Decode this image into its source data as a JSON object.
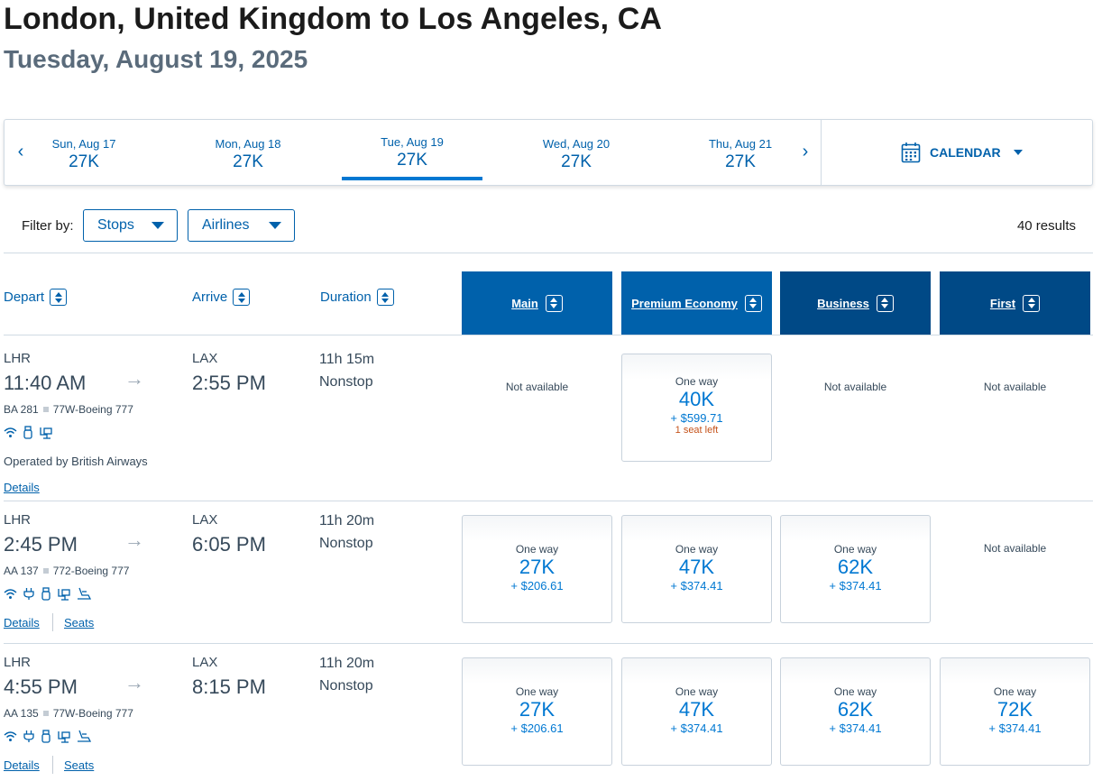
{
  "header": {
    "title": "London, United Kingdom to Los Angeles, CA",
    "subtitle": "Tuesday, August 19, 2025"
  },
  "datebar": {
    "prev_icon": "chevron-left-icon",
    "next_icon": "chevron-right-icon",
    "dates": [
      {
        "label": "Sun, Aug 17",
        "price": "27K"
      },
      {
        "label": "Mon, Aug 18",
        "price": "27K"
      },
      {
        "label": "Tue, Aug 19",
        "price": "27K",
        "selected": true
      },
      {
        "label": "Wed, Aug 20",
        "price": "27K"
      },
      {
        "label": "Thu, Aug 21",
        "price": "27K"
      }
    ],
    "calendar_label": "CALENDAR",
    "calendar_icon": "calendar-icon"
  },
  "filters": {
    "label": "Filter by:",
    "stops": "Stops",
    "airlines": "Airlines",
    "results": "40 results"
  },
  "columns": {
    "depart": "Depart",
    "arrive": "Arrive",
    "duration": "Duration",
    "main": "Main",
    "premium": "Premium Economy",
    "business": "Business",
    "first": "First"
  },
  "flights": [
    {
      "origin": "LHR",
      "depart_time": "11:40 AM",
      "dest": "LAX",
      "arrive_time": "2:55 PM",
      "flight": "BA 281",
      "aircraft": "77W-Boeing 777",
      "duration": "11h 15m",
      "stops": "Nonstop",
      "operated_by": "Operated by British Airways",
      "details": "Details",
      "amenities": [
        "wifi-icon",
        "usb-icon",
        "entertainment-icon"
      ],
      "fares": {
        "main": {
          "available": false,
          "text": "Not available"
        },
        "premium": {
          "available": true,
          "oneway": "One way",
          "miles": "40K",
          "cash": "+ $599.71",
          "seats": "1 seat left"
        },
        "business": {
          "available": false,
          "text": "Not available"
        },
        "first": {
          "available": false,
          "text": "Not available"
        }
      }
    },
    {
      "origin": "LHR",
      "depart_time": "2:45 PM",
      "dest": "LAX",
      "arrive_time": "6:05 PM",
      "flight": "AA 137",
      "aircraft": "772-Boeing 777",
      "duration": "11h 20m",
      "stops": "Nonstop",
      "details": "Details",
      "seats": "Seats",
      "amenities": [
        "wifi-icon",
        "power-icon",
        "usb-icon",
        "entertainment-icon",
        "lie-flat-seat-icon"
      ],
      "fares": {
        "main": {
          "available": true,
          "oneway": "One way",
          "miles": "27K",
          "cash": "+ $206.61"
        },
        "premium": {
          "available": true,
          "oneway": "One way",
          "miles": "47K",
          "cash": "+ $374.41"
        },
        "business": {
          "available": true,
          "oneway": "One way",
          "miles": "62K",
          "cash": "+ $374.41"
        },
        "first": {
          "available": false,
          "text": "Not available"
        }
      }
    },
    {
      "origin": "LHR",
      "depart_time": "4:55 PM",
      "dest": "LAX",
      "arrive_time": "8:15 PM",
      "flight": "AA 135",
      "aircraft": "77W-Boeing 777",
      "duration": "11h 20m",
      "stops": "Nonstop",
      "details": "Details",
      "seats": "Seats",
      "amenities": [
        "wifi-icon",
        "power-icon",
        "usb-icon",
        "entertainment-icon",
        "lie-flat-seat-icon"
      ],
      "fares": {
        "main": {
          "available": true,
          "oneway": "One way",
          "miles": "27K",
          "cash": "+ $206.61"
        },
        "premium": {
          "available": true,
          "oneway": "One way",
          "miles": "47K",
          "cash": "+ $374.41"
        },
        "business": {
          "available": true,
          "oneway": "One way",
          "miles": "62K",
          "cash": "+ $374.41"
        },
        "first": {
          "available": true,
          "oneway": "One way",
          "miles": "72K",
          "cash": "+ $374.41"
        }
      }
    }
  ]
}
